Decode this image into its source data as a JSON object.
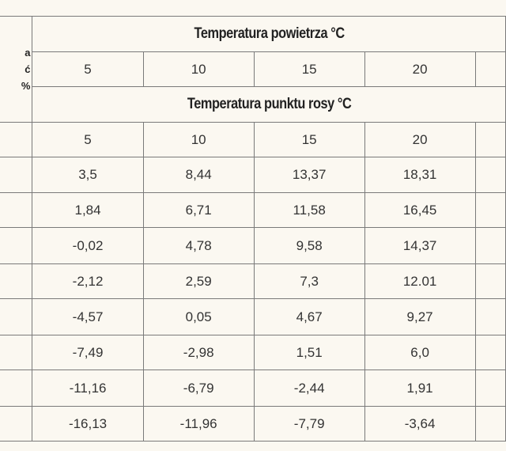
{
  "header": {
    "label_lines": [
      "a",
      "ć",
      "%"
    ],
    "air_temp_title": "Temperatura powietrza  °C",
    "air_temps": [
      "5",
      "10",
      "15",
      "20"
    ],
    "dew_point_title": "Temperatura punktu rosy °C",
    "dew_temps": [
      "5",
      "10",
      "15",
      "20"
    ]
  },
  "rows": [
    [
      "3,5",
      "8,44",
      "13,37",
      "18,31"
    ],
    [
      "1,84",
      "6,71",
      "11,58",
      "16,45"
    ],
    [
      "-0,02",
      "4,78",
      "9,58",
      "14,37"
    ],
    [
      "-2,12",
      "2,59",
      "7,3",
      "12.01"
    ],
    [
      "-4,57",
      "0,05",
      "4,67",
      "9,27"
    ],
    [
      "-7,49",
      "-2,98",
      "1,51",
      "6,0"
    ],
    [
      "-11,16",
      "-6,79",
      "-2,44",
      "1,91"
    ],
    [
      "-16,13",
      "-11,96",
      "-7,79",
      "-3,64"
    ]
  ]
}
